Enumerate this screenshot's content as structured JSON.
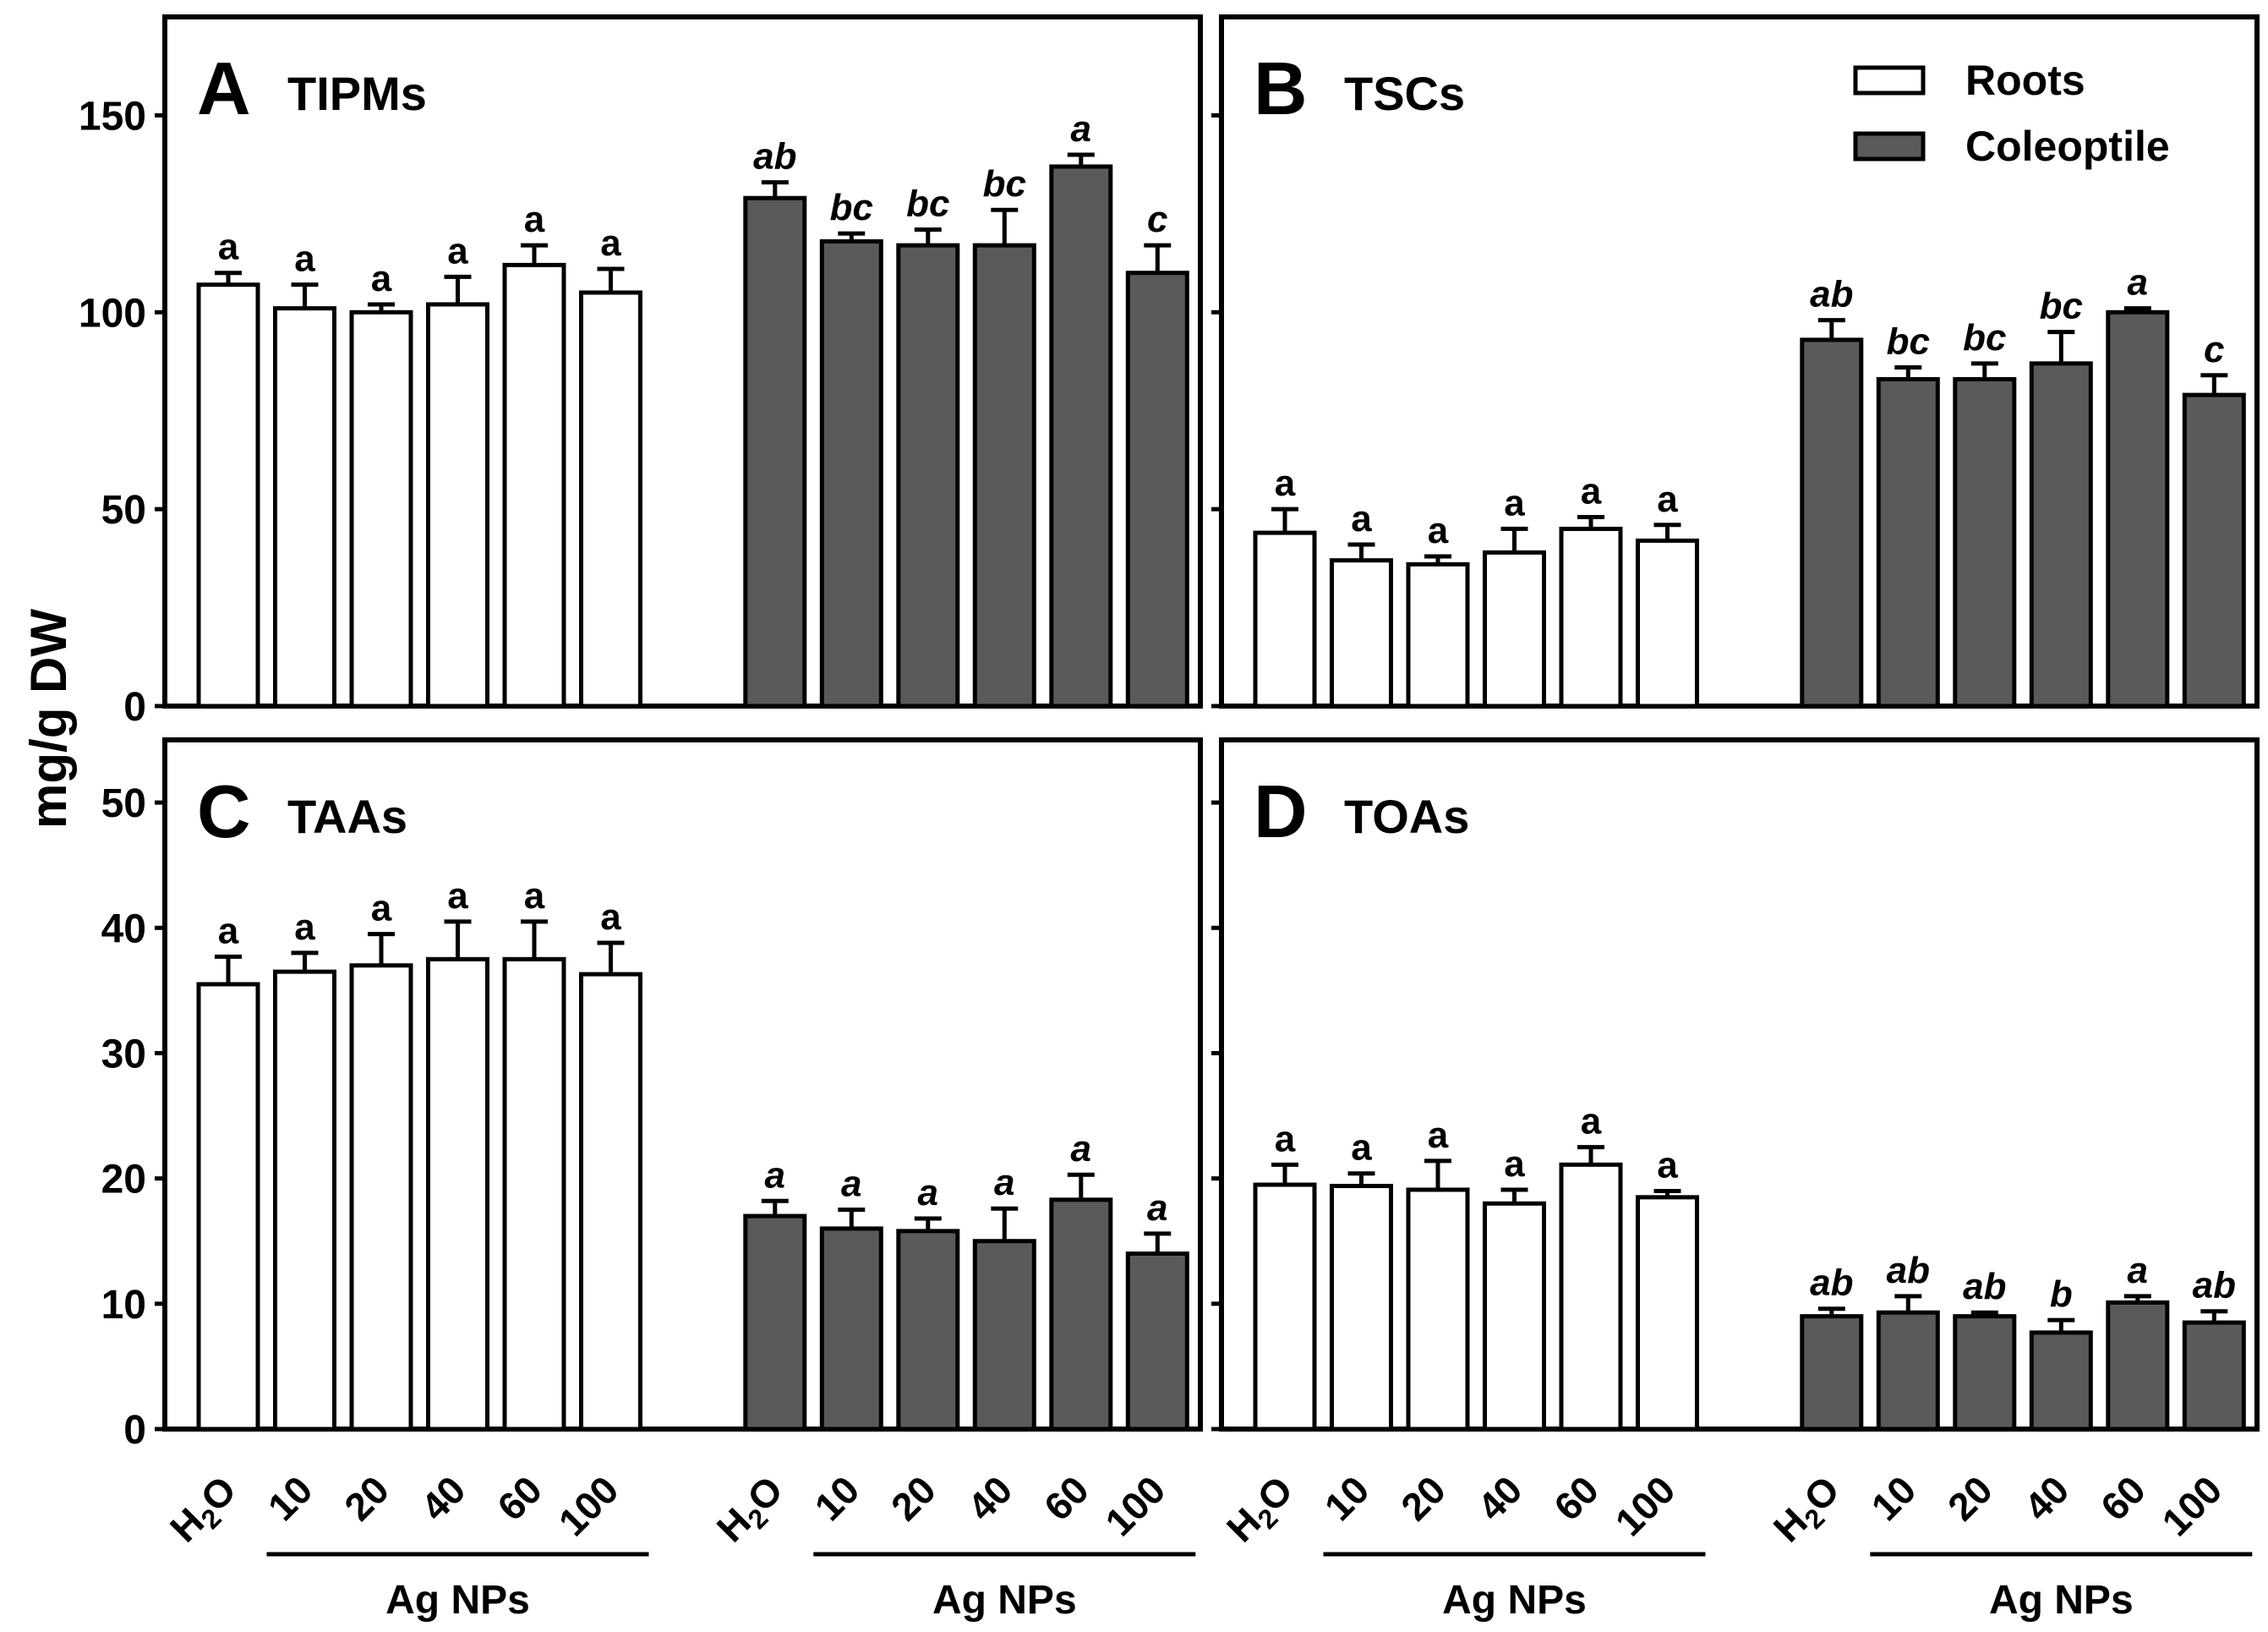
{
  "y_axis_title": "mg/g DW",
  "legend": {
    "roots_label": "Roots",
    "coleoptile_label": "Coleoptile",
    "roots_color": "#ffffff",
    "coleoptile_color": "#5a5a5a"
  },
  "group_label": "Ag NPs",
  "chart_data": [
    {
      "type": "bar",
      "panel_letter": "A",
      "title": "TIPMs",
      "ylabel": "mg/g DW",
      "ylim": [
        0,
        175
      ],
      "yticks": [
        0,
        50,
        100,
        150
      ],
      "categories": [
        "H2O",
        "10",
        "20",
        "40",
        "60",
        "100"
      ],
      "category_group_label": "Ag NPs",
      "series": [
        {
          "name": "Roots",
          "values": [
            107,
            101,
            100,
            102,
            112,
            105
          ],
          "errors": [
            3,
            6,
            2,
            7,
            5,
            6
          ],
          "letters": [
            "a",
            "a",
            "a",
            "a",
            "a",
            "a"
          ]
        },
        {
          "name": "Coleoptile",
          "values": [
            129,
            118,
            117,
            117,
            137,
            110
          ],
          "errors": [
            4,
            2,
            4,
            9,
            3,
            7
          ],
          "letters": [
            "ab",
            "bc",
            "bc",
            "bc",
            "a",
            "c"
          ]
        }
      ]
    },
    {
      "type": "bar",
      "panel_letter": "B",
      "title": "TSCs",
      "ylabel": "mg/g DW",
      "ylim": [
        0,
        175
      ],
      "yticks": [
        0,
        50,
        100,
        150
      ],
      "categories": [
        "H2O",
        "10",
        "20",
        "40",
        "60",
        "100"
      ],
      "category_group_label": "Ag NPs",
      "series": [
        {
          "name": "Roots",
          "values": [
            44,
            37,
            36,
            39,
            45,
            42
          ],
          "errors": [
            6,
            4,
            2,
            6,
            3,
            4
          ],
          "letters": [
            "a",
            "a",
            "a",
            "a",
            "a",
            "a"
          ]
        },
        {
          "name": "Coleoptile",
          "values": [
            93,
            83,
            83,
            87,
            100,
            79
          ],
          "errors": [
            5,
            3,
            4,
            8,
            1,
            5
          ],
          "letters": [
            "ab",
            "bc",
            "bc",
            "bc",
            "a",
            "c"
          ]
        }
      ]
    },
    {
      "type": "bar",
      "panel_letter": "C",
      "title": "TAAs",
      "ylabel": "mg/g DW",
      "ylim": [
        0,
        55
      ],
      "yticks": [
        0,
        10,
        20,
        30,
        40,
        50
      ],
      "categories": [
        "H2O",
        "10",
        "20",
        "40",
        "60",
        "100"
      ],
      "category_group_label": "Ag NPs",
      "series": [
        {
          "name": "Roots",
          "values": [
            35.5,
            36.5,
            37,
            37.5,
            37.5,
            36.3
          ],
          "errors": [
            2.2,
            1.5,
            2.5,
            3,
            3,
            2.5
          ],
          "letters": [
            "a",
            "a",
            "a",
            "a",
            "a",
            "a"
          ]
        },
        {
          "name": "Coleoptile",
          "values": [
            17,
            16,
            15.8,
            15,
            18.3,
            14
          ],
          "errors": [
            1.2,
            1.5,
            1,
            2.6,
            2,
            1.6
          ],
          "letters": [
            "a",
            "a",
            "a",
            "a",
            "a",
            "a"
          ]
        }
      ]
    },
    {
      "type": "bar",
      "panel_letter": "D",
      "title": "TOAs",
      "ylabel": "mg/g DW",
      "ylim": [
        0,
        55
      ],
      "yticks": [
        0,
        10,
        20,
        30,
        40,
        50
      ],
      "categories": [
        "H2O",
        "10",
        "20",
        "40",
        "60",
        "100"
      ],
      "category_group_label": "Ag NPs",
      "series": [
        {
          "name": "Roots",
          "values": [
            19.5,
            19.4,
            19.1,
            18,
            21.1,
            18.5
          ],
          "errors": [
            1.6,
            1,
            2.3,
            1.1,
            1.4,
            0.5
          ],
          "letters": [
            "a",
            "a",
            "a",
            "a",
            "a",
            "a"
          ]
        },
        {
          "name": "Coleoptile",
          "values": [
            9,
            9.3,
            9,
            7.7,
            10.1,
            8.5
          ],
          "errors": [
            0.6,
            1.3,
            0.3,
            1,
            0.5,
            0.9
          ],
          "letters": [
            "ab",
            "ab",
            "ab",
            "b",
            "a",
            "ab"
          ]
        }
      ]
    }
  ]
}
